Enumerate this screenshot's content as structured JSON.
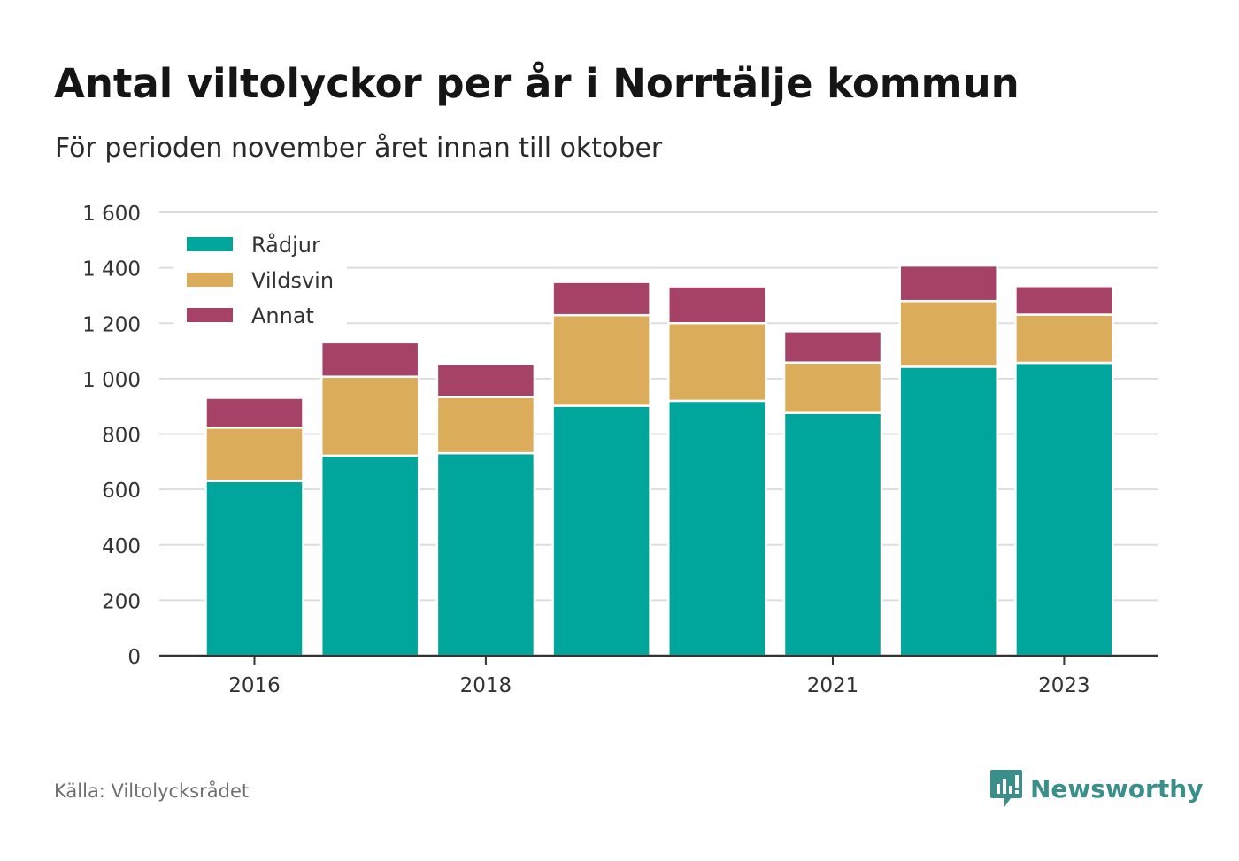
{
  "header": {
    "title": "Antal viltolyckor per år i Norrtälje kommun",
    "subtitle": "För perioden november året innan till oktober"
  },
  "footer": {
    "source": "Källa: Viltolycksrådet",
    "brand": "Newsworthy",
    "brand_icon": "newsworthy-logo-icon"
  },
  "colors": {
    "radjur": "#00a59b",
    "vildsvin": "#dbad5a",
    "annat": "#a64167",
    "grid": "#dddddd",
    "axis": "#333333",
    "text": "#333333"
  },
  "chart_data": {
    "type": "bar",
    "stacked": true,
    "categories": [
      "2016",
      "2017",
      "2018",
      "2019",
      "2020",
      "2021",
      "2022",
      "2023"
    ],
    "x_tick_labels": [
      "2016",
      "",
      "2018",
      "",
      "",
      "2021",
      "",
      "2023"
    ],
    "series": [
      {
        "name": "Rådjur",
        "color": "#00a59b",
        "values": [
          630,
          722,
          731,
          902,
          920,
          876,
          1043,
          1057
        ]
      },
      {
        "name": "Vildsvin",
        "color": "#dbad5a",
        "values": [
          193,
          285,
          203,
          327,
          280,
          182,
          237,
          174
        ]
      },
      {
        "name": "Annat",
        "color": "#a64167",
        "values": [
          108,
          124,
          119,
          120,
          133,
          113,
          128,
          103
        ]
      }
    ],
    "ylim": [
      0,
      1600
    ],
    "yticks": [
      0,
      200,
      400,
      600,
      800,
      1000,
      1200,
      1400,
      1600
    ],
    "ytick_labels": [
      "0",
      "200",
      "400",
      "600",
      "800",
      "1 000",
      "1 200",
      "1 400",
      "1 600"
    ],
    "xlabel": "",
    "ylabel": "",
    "grid": true,
    "legend_position": "top-left"
  }
}
